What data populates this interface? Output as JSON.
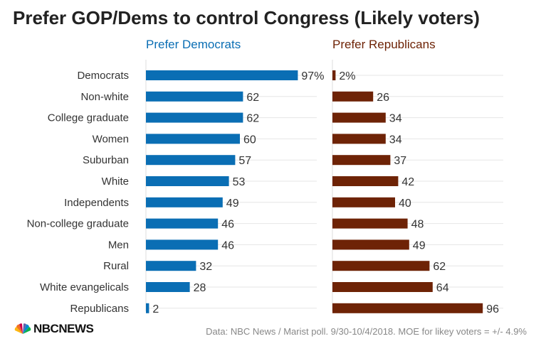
{
  "title": "Prefer GOP/Dems to control Congress (Likely voters)",
  "source": "Data: NBC News / Marist poll. 9/30-10/4/2018. MOE for likey voters = +/- 4.9%",
  "logo_text": "NBCNEWS",
  "colors": {
    "democrats": "#0a6eb4",
    "republicans": "#6e2306",
    "text": "#333333",
    "grid": "#e6e6e6"
  },
  "chart_data": {
    "type": "bar",
    "orientation": "horizontal",
    "categories": [
      "Democrats",
      "Non-white",
      "College graduate",
      "Women",
      "Suburban",
      "White",
      "Independents",
      "Non-college graduate",
      "Men",
      "Rural",
      "White evangelicals",
      "Republicans"
    ],
    "series": [
      {
        "name": "Prefer Democrats",
        "values": [
          97,
          62,
          62,
          60,
          57,
          53,
          49,
          46,
          46,
          32,
          28,
          2
        ],
        "labels": [
          "97%",
          "62",
          "62",
          "60",
          "57",
          "53",
          "49",
          "46",
          "46",
          "32",
          "28",
          "2"
        ]
      },
      {
        "name": "Prefer Republicans",
        "values": [
          2,
          26,
          34,
          34,
          37,
          42,
          40,
          48,
          49,
          62,
          64,
          96
        ],
        "labels": [
          "2%",
          "26",
          "34",
          "34",
          "37",
          "42",
          "40",
          "48",
          "49",
          "62",
          "64",
          "96"
        ]
      }
    ],
    "xlim": [
      0,
      100
    ],
    "grid": true
  }
}
